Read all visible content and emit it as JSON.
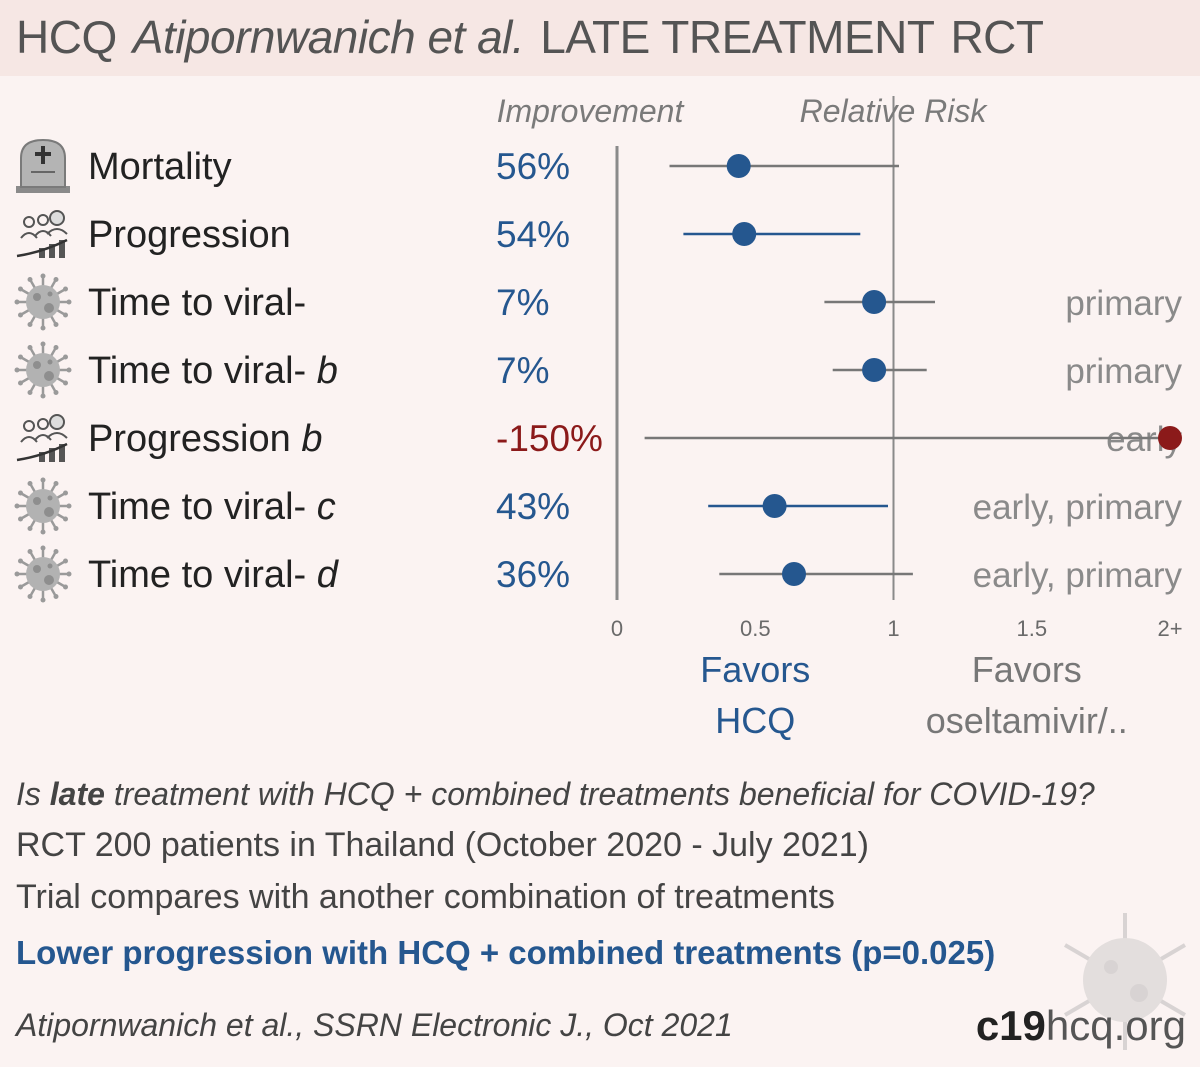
{
  "header": {
    "drug": "HCQ",
    "authors": "Atipornwanich et al.",
    "stage": "LATE TREATMENT",
    "design": "RCT"
  },
  "columns": {
    "improvement": "Improvement",
    "relative_risk": "Relative Risk"
  },
  "chart_data": {
    "type": "forest",
    "xlim": [
      0,
      2
    ],
    "reference_line": 1,
    "ticks": [
      {
        "value": 0,
        "label": "0"
      },
      {
        "value": 0.5,
        "label": "0.5"
      },
      {
        "value": 1,
        "label": "1"
      },
      {
        "value": 1.5,
        "label": "1.5"
      },
      {
        "value": 2,
        "label": "2+"
      }
    ],
    "favors_left": [
      "Favors",
      "HCQ"
    ],
    "favors_right": [
      "Favors",
      "oseltamivir/.."
    ],
    "rows": [
      {
        "label": "Mortality",
        "suffix": "",
        "icon": "tombstone-icon",
        "improvement": "56%",
        "rr": 0.44,
        "lo": 0.19,
        "hi": 1.02,
        "note": "",
        "color": "#25578f",
        "ci_color": "#777777"
      },
      {
        "label": "Progression",
        "suffix": "",
        "icon": "progression-icon",
        "improvement": "54%",
        "rr": 0.46,
        "lo": 0.24,
        "hi": 0.88,
        "note": "",
        "color": "#25578f",
        "ci_color": "#25578f"
      },
      {
        "label": "Time to viral-",
        "suffix": "",
        "icon": "virus-icon",
        "improvement": "7%",
        "rr": 0.93,
        "lo": 0.75,
        "hi": 1.15,
        "note": "primary",
        "color": "#25578f",
        "ci_color": "#777777"
      },
      {
        "label": "Time to viral- ",
        "suffix": "b",
        "icon": "virus-icon",
        "improvement": "7%",
        "rr": 0.93,
        "lo": 0.78,
        "hi": 1.12,
        "note": "primary",
        "color": "#25578f",
        "ci_color": "#777777"
      },
      {
        "label": "Progression ",
        "suffix": "b",
        "icon": "progression-icon",
        "improvement": "-150%",
        "rr": 2.5,
        "lo": 0.1,
        "hi": 5,
        "note": "early",
        "color": "#8b1a1a",
        "ci_color": "#777777"
      },
      {
        "label": "Time to viral- ",
        "suffix": "c",
        "icon": "virus-icon",
        "improvement": "43%",
        "rr": 0.57,
        "lo": 0.33,
        "hi": 0.98,
        "note": "early, primary",
        "color": "#25578f",
        "ci_color": "#25578f"
      },
      {
        "label": "Time to viral- ",
        "suffix": "d",
        "icon": "virus-icon",
        "improvement": "36%",
        "rr": 0.64,
        "lo": 0.37,
        "hi": 1.07,
        "note": "early, primary",
        "color": "#25578f",
        "ci_color": "#777777"
      }
    ]
  },
  "info": {
    "question_pre": "Is ",
    "question_bold": "late",
    "question_post": " treatment with HCQ + combined treatments beneficial for COVID-19?",
    "summary": "RCT 200 patients in Thailand (October 2020 - July 2021)",
    "compare": "Trial compares with another combination of treatments",
    "conclusion": "Lower progression with HCQ + combined treatments (p=0.025)",
    "citation": "Atipornwanich et al., SSRN Electronic J., Oct 2021"
  },
  "brand": {
    "bold": "c19",
    "light": "hcq.org"
  },
  "colors": {
    "positive": "#25578f",
    "negative": "#8b1a1a",
    "header_bg": "#f6e7e4",
    "page_bg": "#fbf3f2"
  }
}
